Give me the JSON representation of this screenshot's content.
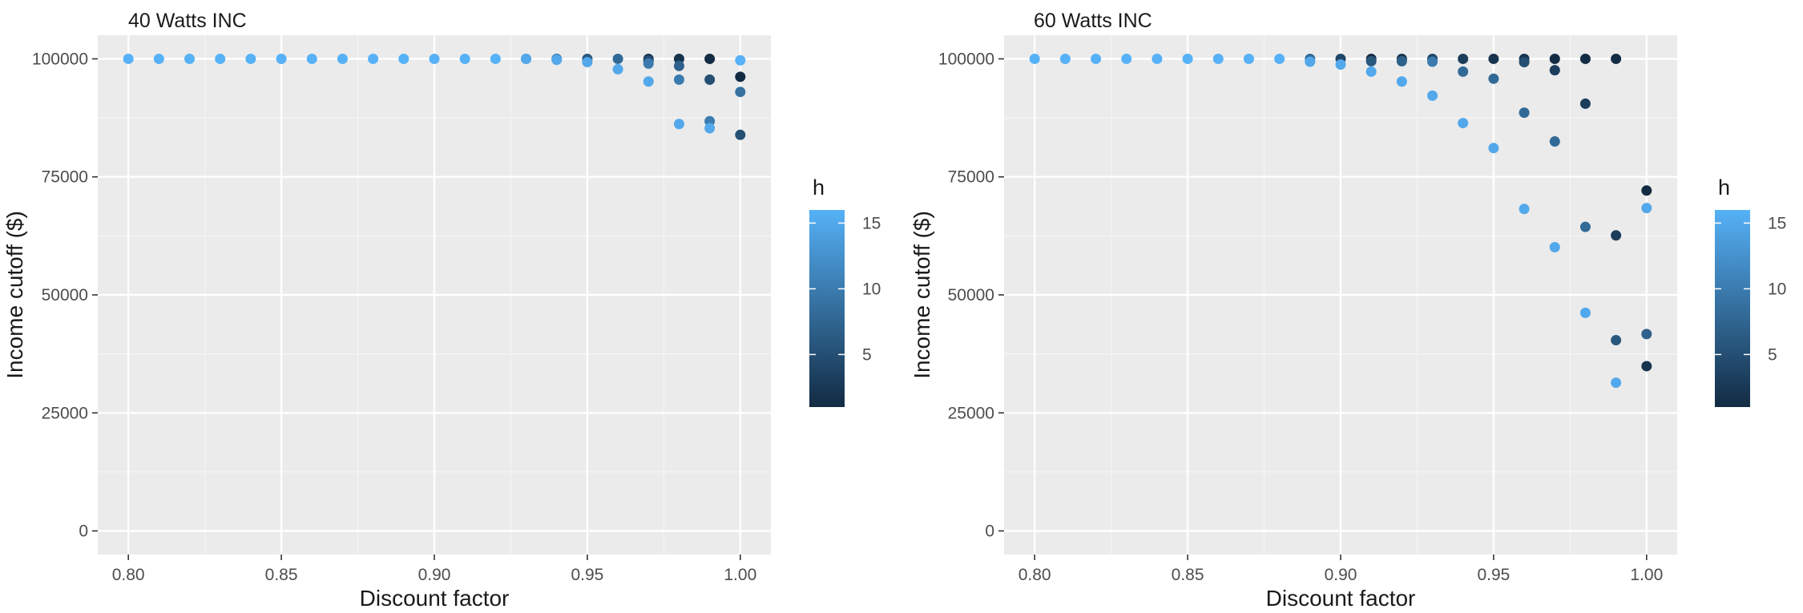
{
  "chart_data": [
    {
      "type": "scatter",
      "title": "40 Watts INC",
      "xlabel": "Discount factor",
      "ylabel": "Income cutoff ($)",
      "xlim": [
        0.79,
        1.01
      ],
      "ylim": [
        -5000,
        105000
      ],
      "x_ticks": [
        "0.80",
        "0.85",
        "0.90",
        "0.95",
        "1.00"
      ],
      "y_ticks": [
        "0",
        "25000",
        "50000",
        "75000",
        "100000"
      ],
      "grid": true,
      "legend": {
        "title": "h",
        "ticks": [
          "5",
          "10",
          "15"
        ],
        "range": [
          1,
          16
        ],
        "position": "right"
      },
      "points": [
        {
          "x": 0.8,
          "y": 100000,
          "h": 16
        },
        {
          "x": 0.81,
          "y": 100000,
          "h": 16
        },
        {
          "x": 0.82,
          "y": 100000,
          "h": 16
        },
        {
          "x": 0.83,
          "y": 100000,
          "h": 16
        },
        {
          "x": 0.84,
          "y": 100000,
          "h": 16
        },
        {
          "x": 0.85,
          "y": 100000,
          "h": 16
        },
        {
          "x": 0.86,
          "y": 100000,
          "h": 16
        },
        {
          "x": 0.87,
          "y": 100000,
          "h": 16
        },
        {
          "x": 0.88,
          "y": 100000,
          "h": 16
        },
        {
          "x": 0.89,
          "y": 100000,
          "h": 16
        },
        {
          "x": 0.9,
          "y": 100000,
          "h": 16
        },
        {
          "x": 0.91,
          "y": 100000,
          "h": 16
        },
        {
          "x": 0.92,
          "y": 100000,
          "h": 16
        },
        {
          "x": 0.93,
          "y": 100000,
          "h": 10
        },
        {
          "x": 0.93,
          "y": 100000,
          "h": 15
        },
        {
          "x": 0.94,
          "y": 100000,
          "h": 8
        },
        {
          "x": 0.94,
          "y": 99800,
          "h": 15
        },
        {
          "x": 0.95,
          "y": 100000,
          "h": 6
        },
        {
          "x": 0.95,
          "y": 99300,
          "h": 15
        },
        {
          "x": 0.96,
          "y": 100000,
          "h": 8
        },
        {
          "x": 0.96,
          "y": 97800,
          "h": 15
        },
        {
          "x": 0.97,
          "y": 100000,
          "h": 2
        },
        {
          "x": 0.97,
          "y": 99600,
          "h": 5
        },
        {
          "x": 0.97,
          "y": 99000,
          "h": 10
        },
        {
          "x": 0.97,
          "y": 95200,
          "h": 15
        },
        {
          "x": 0.98,
          "y": 100000,
          "h": 2
        },
        {
          "x": 0.98,
          "y": 98500,
          "h": 7
        },
        {
          "x": 0.98,
          "y": 95600,
          "h": 10
        },
        {
          "x": 0.98,
          "y": 86200,
          "h": 15
        },
        {
          "x": 0.99,
          "y": 100000,
          "h": 1
        },
        {
          "x": 0.99,
          "y": 95600,
          "h": 5
        },
        {
          "x": 0.99,
          "y": 86800,
          "h": 10
        },
        {
          "x": 0.99,
          "y": 85300,
          "h": 15
        },
        {
          "x": 1.0,
          "y": 99700,
          "h": 16
        },
        {
          "x": 1.0,
          "y": 96200,
          "h": 1
        },
        {
          "x": 1.0,
          "y": 93000,
          "h": 9
        },
        {
          "x": 1.0,
          "y": 83900,
          "h": 5
        }
      ]
    },
    {
      "type": "scatter",
      "title": "60 Watts INC",
      "xlabel": "Discount factor",
      "ylabel": "Income cutoff ($)",
      "xlim": [
        0.79,
        1.01
      ],
      "ylim": [
        -5000,
        105000
      ],
      "x_ticks": [
        "0.80",
        "0.85",
        "0.90",
        "0.95",
        "1.00"
      ],
      "y_ticks": [
        "0",
        "25000",
        "50000",
        "75000",
        "100000"
      ],
      "grid": true,
      "legend": {
        "title": "h",
        "ticks": [
          "5",
          "10",
          "15"
        ],
        "range": [
          1,
          16
        ],
        "position": "right"
      },
      "points": [
        {
          "x": 0.8,
          "y": 100000,
          "h": 16
        },
        {
          "x": 0.81,
          "y": 100000,
          "h": 16
        },
        {
          "x": 0.82,
          "y": 100000,
          "h": 16
        },
        {
          "x": 0.83,
          "y": 100000,
          "h": 16
        },
        {
          "x": 0.84,
          "y": 100000,
          "h": 16
        },
        {
          "x": 0.85,
          "y": 100000,
          "h": 16
        },
        {
          "x": 0.86,
          "y": 100000,
          "h": 16
        },
        {
          "x": 0.87,
          "y": 100000,
          "h": 16
        },
        {
          "x": 0.88,
          "y": 100000,
          "h": 16
        },
        {
          "x": 0.89,
          "y": 100000,
          "h": 8
        },
        {
          "x": 0.89,
          "y": 99400,
          "h": 15
        },
        {
          "x": 0.9,
          "y": 100000,
          "h": 4
        },
        {
          "x": 0.9,
          "y": 98800,
          "h": 15
        },
        {
          "x": 0.91,
          "y": 100000,
          "h": 1
        },
        {
          "x": 0.91,
          "y": 99500,
          "h": 6
        },
        {
          "x": 0.91,
          "y": 97300,
          "h": 15
        },
        {
          "x": 0.92,
          "y": 100000,
          "h": 2
        },
        {
          "x": 0.92,
          "y": 99500,
          "h": 7
        },
        {
          "x": 0.92,
          "y": 95200,
          "h": 15
        },
        {
          "x": 0.93,
          "y": 100000,
          "h": 4
        },
        {
          "x": 0.93,
          "y": 99400,
          "h": 10
        },
        {
          "x": 0.93,
          "y": 92200,
          "h": 15
        },
        {
          "x": 0.94,
          "y": 100000,
          "h": 3
        },
        {
          "x": 0.94,
          "y": 97300,
          "h": 8
        },
        {
          "x": 0.94,
          "y": 86400,
          "h": 15
        },
        {
          "x": 0.95,
          "y": 100000,
          "h": 2
        },
        {
          "x": 0.95,
          "y": 95800,
          "h": 8
        },
        {
          "x": 0.95,
          "y": 81100,
          "h": 15
        },
        {
          "x": 0.96,
          "y": 100000,
          "h": 2
        },
        {
          "x": 0.96,
          "y": 99300,
          "h": 5
        },
        {
          "x": 0.96,
          "y": 88600,
          "h": 8
        },
        {
          "x": 0.96,
          "y": 68200,
          "h": 15
        },
        {
          "x": 0.97,
          "y": 100000,
          "h": 1
        },
        {
          "x": 0.97,
          "y": 97600,
          "h": 3
        },
        {
          "x": 0.97,
          "y": 82500,
          "h": 8
        },
        {
          "x": 0.97,
          "y": 60100,
          "h": 15
        },
        {
          "x": 0.98,
          "y": 100000,
          "h": 1
        },
        {
          "x": 0.98,
          "y": 90500,
          "h": 3
        },
        {
          "x": 0.98,
          "y": 64400,
          "h": 8
        },
        {
          "x": 0.98,
          "y": 46200,
          "h": 15
        },
        {
          "x": 0.99,
          "y": 100000,
          "h": 1
        },
        {
          "x": 0.99,
          "y": 62600,
          "h": 3
        },
        {
          "x": 0.99,
          "y": 40400,
          "h": 6
        },
        {
          "x": 0.99,
          "y": 31400,
          "h": 15
        },
        {
          "x": 1.0,
          "y": 72100,
          "h": 1
        },
        {
          "x": 1.0,
          "y": 68400,
          "h": 15
        },
        {
          "x": 1.0,
          "y": 41700,
          "h": 7
        },
        {
          "x": 1.0,
          "y": 34900,
          "h": 2
        }
      ]
    }
  ]
}
